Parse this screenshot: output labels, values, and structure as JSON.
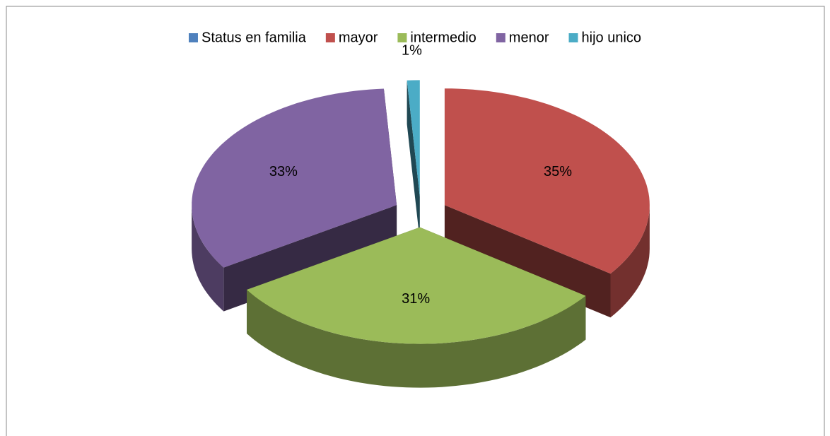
{
  "chart_data": {
    "type": "pie3d",
    "categories": [
      "Status en familia",
      "mayor",
      "intermedio",
      "menor",
      "hijo unico"
    ],
    "values": [
      0,
      35,
      31,
      33,
      1
    ],
    "value_labels": [
      null,
      "35%",
      "31%",
      "33%",
      "1%"
    ],
    "colors": [
      "#4f81bd",
      "#c0504d",
      "#9bbb59",
      "#8064a2",
      "#4bacc6"
    ],
    "legend": "top"
  }
}
